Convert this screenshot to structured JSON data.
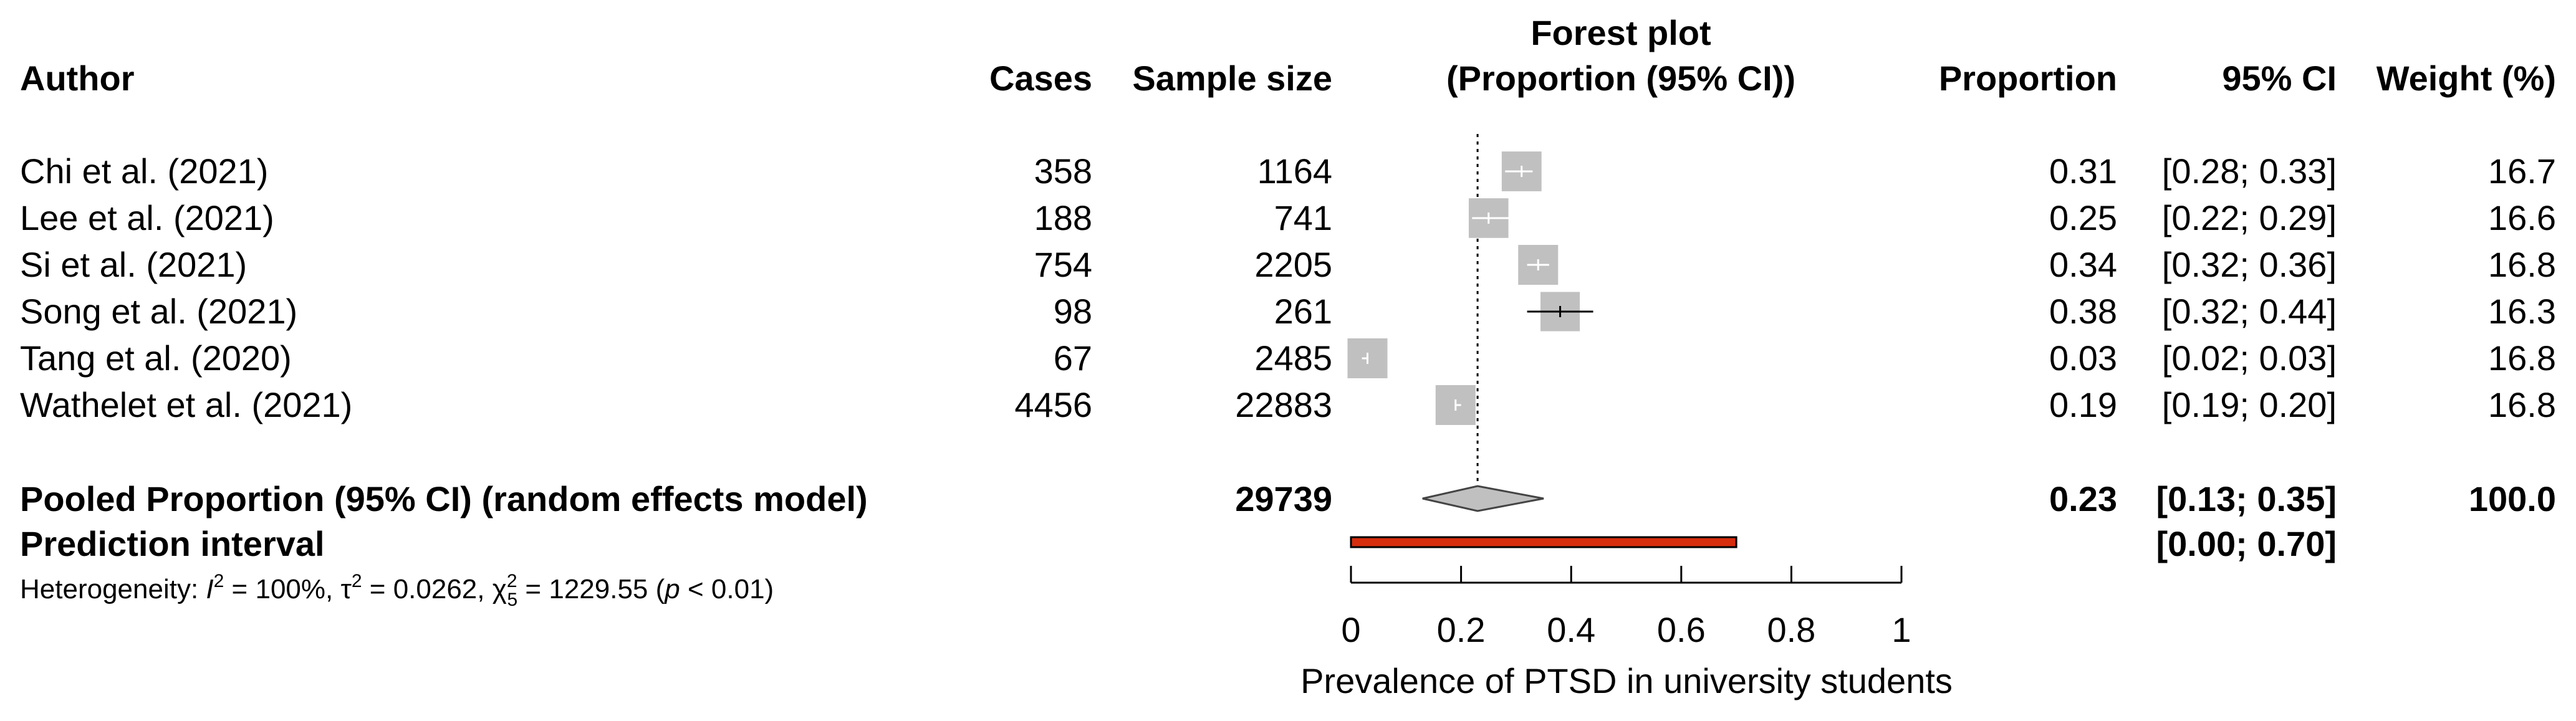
{
  "chart_data": {
    "type": "forest",
    "title": "Forest plot",
    "headers": {
      "author": "Author",
      "cases": "Cases",
      "sample_size": "Sample size",
      "plot_line1": "Forest plot",
      "plot_line2": "(Proportion (95% CI))",
      "proportion": "Proportion",
      "ci": "95% CI",
      "weight": "Weight (%)"
    },
    "studies": [
      {
        "author": "Chi et al. (2021)",
        "cases": "358",
        "sample_size": "1164",
        "proportion": 0.31,
        "ci_low": 0.28,
        "ci_high": 0.33,
        "prop_label": "0.31",
        "ci_label": "[0.28; 0.33]",
        "weight": "16.7",
        "weight_value": 16.7
      },
      {
        "author": "Lee et al. (2021)",
        "cases": "188",
        "sample_size": "741",
        "proportion": 0.25,
        "ci_low": 0.22,
        "ci_high": 0.29,
        "prop_label": "0.25",
        "ci_label": "[0.22; 0.29]",
        "weight": "16.6",
        "weight_value": 16.6
      },
      {
        "author": "Si et al. (2021)",
        "cases": "754",
        "sample_size": "2205",
        "proportion": 0.34,
        "ci_low": 0.32,
        "ci_high": 0.36,
        "prop_label": "0.34",
        "ci_label": "[0.32; 0.36]",
        "weight": "16.8",
        "weight_value": 16.8
      },
      {
        "author": "Song et al. (2021)",
        "cases": "98",
        "sample_size": "261",
        "proportion": 0.38,
        "ci_low": 0.32,
        "ci_high": 0.44,
        "prop_label": "0.38",
        "ci_label": "[0.32; 0.44]",
        "weight": "16.3",
        "weight_value": 16.3
      },
      {
        "author": "Tang et al. (2020)",
        "cases": "67",
        "sample_size": "2485",
        "proportion": 0.03,
        "ci_low": 0.02,
        "ci_high": 0.03,
        "prop_label": "0.03",
        "ci_label": "[0.02; 0.03]",
        "weight": "16.8",
        "weight_value": 16.8
      },
      {
        "author": "Wathelet et al. (2021)",
        "cases": "4456",
        "sample_size": "22883",
        "proportion": 0.19,
        "ci_low": 0.19,
        "ci_high": 0.2,
        "prop_label": "0.19",
        "ci_label": "[0.19; 0.20]",
        "weight": "16.8",
        "weight_value": 16.8
      }
    ],
    "pooled": {
      "label": "Pooled Proportion (95% CI) (random effects model)",
      "sample_size": "29739",
      "estimate": 0.23,
      "ci_low": 0.13,
      "ci_high": 0.35,
      "prop_label": "0.23",
      "ci_label": "[0.13; 0.35]",
      "weight": "100.0"
    },
    "prediction": {
      "label": "Prediction interval",
      "low": 0.0,
      "high": 0.7,
      "ci_label": "[0.00; 0.70]"
    },
    "heterogeneity": {
      "prefix": "Heterogeneity: ",
      "i2_symbol": "I",
      "i2_exp": "2",
      "i2_value": " = 100%, ",
      "tau_symbol": "τ",
      "tau_exp": "2",
      "tau_value": " = 0.0262, ",
      "chi_symbol": "χ",
      "chi_exp": "2",
      "chi_df": "5",
      "chi_value": " = 1229.55 (",
      "p_symbol": "p",
      "p_value": " < 0.01)"
    },
    "reference_line": 0.23,
    "xaxis": {
      "label": "Prevalence of PTSD in university students",
      "range": [
        0,
        1
      ],
      "ticks": [
        0,
        0.2,
        0.4,
        0.6,
        0.8,
        1
      ],
      "tick_labels": [
        "0",
        "0.2",
        "0.4",
        "0.6",
        "0.8",
        "1"
      ]
    },
    "colors": {
      "box": "#c0c0c0",
      "diamond": "#c0c0c0",
      "prediction_fill": "#d62d0e",
      "prediction_border": "#000000"
    }
  }
}
